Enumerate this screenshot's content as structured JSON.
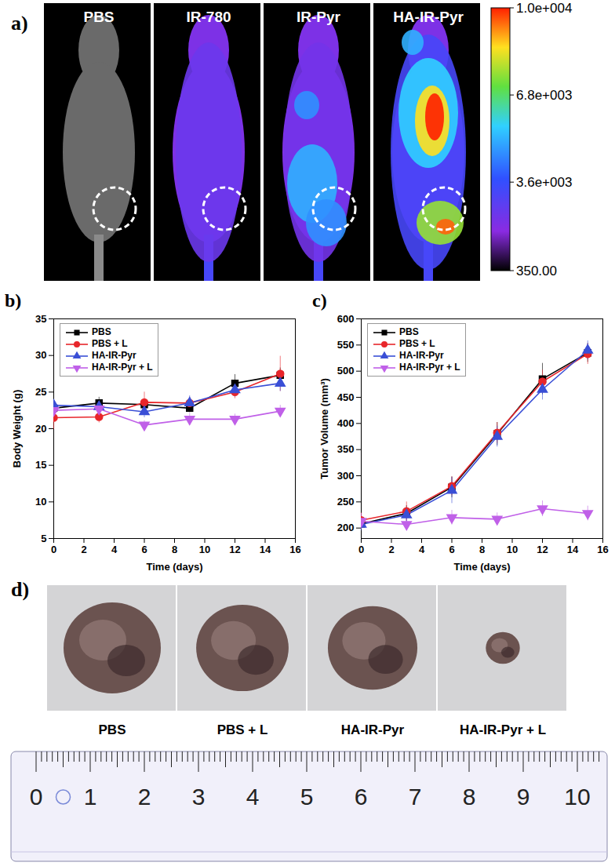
{
  "chart_data": [
    {
      "type": "image",
      "title": "a)",
      "categories": [
        "PBS",
        "IR-780",
        "IR-Pyr",
        "HA-IR-Pyr"
      ],
      "colorbar": {
        "range": [
          350,
          10000
        ],
        "ticks": [
          {
            "value": 10000,
            "label": "1.0e+004"
          },
          {
            "value": 6800,
            "label": "6.8e+003"
          },
          {
            "value": 3600,
            "label": "3.6e+003"
          },
          {
            "value": 350,
            "label": "350.00"
          }
        ]
      }
    },
    {
      "type": "line",
      "title": "b)",
      "xlabel": "Time (days)",
      "ylabel": "Body Weight (g)",
      "x": [
        0,
        3,
        6,
        9,
        12,
        15
      ],
      "xlim": [
        0,
        16
      ],
      "xticks": [
        0,
        2,
        4,
        6,
        8,
        10,
        12,
        14,
        16
      ],
      "ylim": [
        5,
        35
      ],
      "yticks": [
        5,
        10,
        15,
        20,
        25,
        30,
        35
      ],
      "legend": "upper left",
      "series": [
        {
          "name": "PBS",
          "color": "#000000",
          "marker": "square",
          "values": [
            22.8,
            23.5,
            23.3,
            22.8,
            26.2,
            27.3
          ],
          "errors": [
            0.6,
            0.8,
            0.7,
            0.6,
            1.2,
            1.0
          ]
        },
        {
          "name": "PBS + L",
          "color": "#e8262b",
          "marker": "circle",
          "values": [
            21.5,
            21.6,
            23.6,
            23.5,
            25.0,
            27.5
          ],
          "errors": [
            1.6,
            0.8,
            1.4,
            0.8,
            0.9,
            2.4
          ]
        },
        {
          "name": "HA-IR-Pyr",
          "color": "#3a4fd6",
          "marker": "triangle",
          "values": [
            23.2,
            23.0,
            22.3,
            23.5,
            25.3,
            26.2
          ],
          "errors": [
            0.7,
            0.8,
            0.8,
            1.0,
            1.0,
            1.1
          ]
        },
        {
          "name": "HA-IR-Pyr + L",
          "color": "#c060e8",
          "marker": "triangle-down",
          "values": [
            22.5,
            22.7,
            20.5,
            21.3,
            21.3,
            22.4
          ],
          "errors": [
            0.6,
            0.7,
            0.6,
            0.8,
            0.7,
            0.8
          ]
        }
      ]
    },
    {
      "type": "line",
      "title": "c)",
      "xlabel": "Time (days)",
      "ylabel": "Tumor Volume (mm³)",
      "x": [
        0,
        3,
        6,
        9,
        12,
        15
      ],
      "xlim": [
        0,
        16
      ],
      "xticks": [
        0,
        2,
        4,
        6,
        8,
        10,
        12,
        14,
        16
      ],
      "ylim": [
        180,
        600
      ],
      "yticks": [
        200,
        250,
        300,
        350,
        400,
        450,
        500,
        550,
        600
      ],
      "legend": "upper left",
      "series": [
        {
          "name": "PBS",
          "color": "#000000",
          "marker": "square",
          "values": [
            208,
            228,
            278,
            380,
            485,
            535
          ],
          "errors": [
            12,
            15,
            20,
            22,
            30,
            18
          ]
        },
        {
          "name": "PBS + L",
          "color": "#e8262b",
          "marker": "circle",
          "values": [
            215,
            232,
            280,
            382,
            480,
            533
          ],
          "errors": [
            14,
            18,
            18,
            20,
            22,
            20
          ]
        },
        {
          "name": "HA-IR-Pyr",
          "color": "#3a4fd6",
          "marker": "triangle",
          "values": [
            207,
            225,
            272,
            375,
            465,
            540
          ],
          "errors": [
            12,
            14,
            25,
            20,
            20,
            18
          ]
        },
        {
          "name": "HA-IR-Pyr + L",
          "color": "#c060e8",
          "marker": "triangle-down",
          "values": [
            213,
            207,
            220,
            217,
            237,
            228
          ],
          "errors": [
            15,
            10,
            14,
            12,
            15,
            14
          ]
        }
      ]
    },
    {
      "type": "image",
      "title": "d)",
      "categories": [
        "PBS",
        "PBS + L",
        "HA-IR-Pyr",
        "HA-IR-Pyr + L"
      ],
      "ruler": {
        "range": [
          0,
          10
        ],
        "ticks": [
          0,
          1,
          2,
          3,
          4,
          5,
          6,
          7,
          8,
          9,
          10
        ]
      }
    }
  ]
}
